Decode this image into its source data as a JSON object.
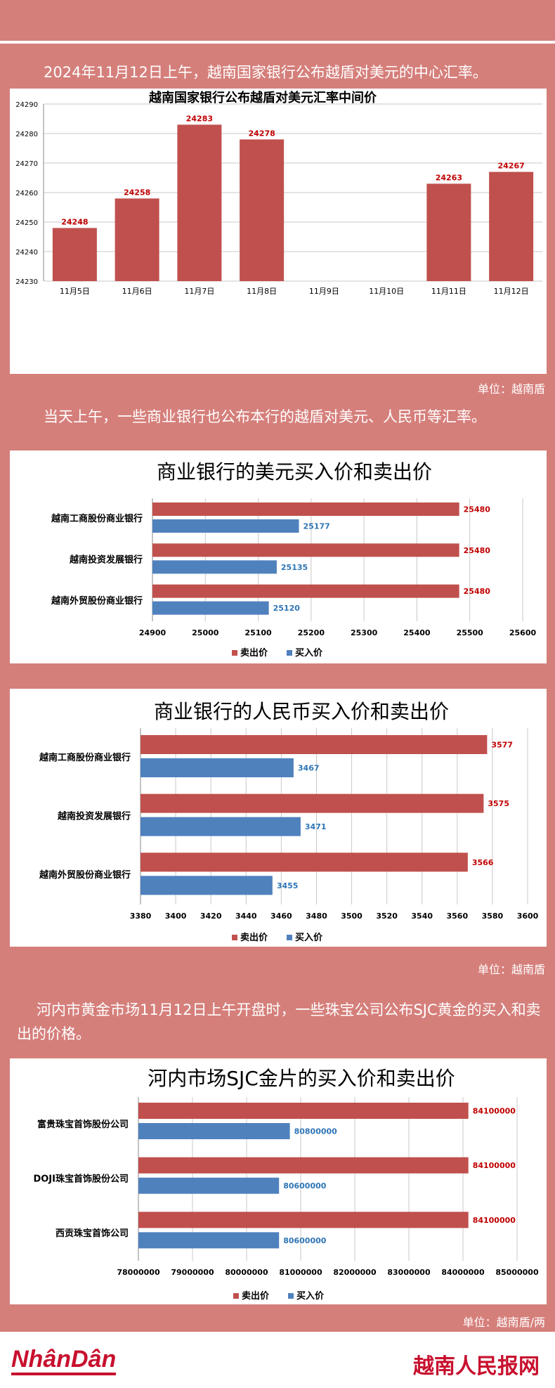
{
  "intro1": "2024年11月12日上午，越南国家银行公布越盾对美元的中心汇率。",
  "unit1": "单位：越南盾",
  "intro2": "当天上午，一些商业银行也公布本行的越盾对美元、人民币等汇率。",
  "unit2": "单位：越南盾",
  "intro3": "河内市黄金市场11月12日上午开盘时，一些珠宝公司公布SJC黄金的买入和卖出的价格。",
  "unit3": "单位：越南盾/两",
  "footer": {
    "logo": "NhânDân",
    "brand": "越南人民报网"
  },
  "colors": {
    "sell": "#c0504d",
    "buy": "#4f81bd",
    "background": "#d57f7b"
  },
  "legend": {
    "sell": "卖出价",
    "buy": "买入价"
  },
  "chart_data": [
    {
      "type": "bar",
      "title": "越南国家银行公布越盾对美元汇率中间价",
      "categories": [
        "11月5日",
        "11月6日",
        "11月7日",
        "11月8日",
        "11月9日",
        "11月10日",
        "11月11日",
        "11月12日"
      ],
      "values": [
        24248,
        24258,
        24283,
        24278,
        null,
        null,
        24263,
        24267
      ],
      "ylim": [
        24230,
        24290
      ],
      "yticks": [
        24230,
        24240,
        24250,
        24260,
        24270,
        24280,
        24290
      ],
      "grid": true
    },
    {
      "type": "bar",
      "orientation": "horizontal",
      "title": "商业银行的美元买入价和卖出价",
      "categories": [
        "越南工商股份商业银行",
        "越南投资发展银行",
        "越南外贸股份商业银行"
      ],
      "series": [
        {
          "name": "卖出价",
          "values": [
            25480,
            25480,
            25480
          ]
        },
        {
          "name": "买入价",
          "values": [
            25177,
            25135,
            25120
          ]
        }
      ],
      "xlim": [
        24900,
        25600
      ],
      "xticks": [
        24900,
        25000,
        25100,
        25200,
        25300,
        25400,
        25500,
        25600
      ],
      "legend": "bottom"
    },
    {
      "type": "bar",
      "orientation": "horizontal",
      "title": "商业银行的人民币买入价和卖出价",
      "categories": [
        "越南工商股份商业银行",
        "越南投资发展银行",
        "越南外贸股份商业银行"
      ],
      "series": [
        {
          "name": "卖出价",
          "values": [
            3577,
            3575,
            3566
          ]
        },
        {
          "name": "买入价",
          "values": [
            3467,
            3471,
            3455
          ]
        }
      ],
      "xlim": [
        3380,
        3600
      ],
      "xticks": [
        3380,
        3400,
        3420,
        3440,
        3460,
        3480,
        3500,
        3520,
        3540,
        3560,
        3580,
        3600
      ],
      "legend": "bottom"
    },
    {
      "type": "bar",
      "orientation": "horizontal",
      "title": "河内市场SJC金片的买入价和卖出价",
      "categories": [
        "富贵珠宝首饰股份公司",
        "DOJI珠宝首饰股份公司",
        "西贡珠宝首饰公司"
      ],
      "series": [
        {
          "name": "卖出价",
          "values": [
            84100000,
            84100000,
            84100000
          ]
        },
        {
          "name": "买入价",
          "values": [
            80800000,
            80600000,
            80600000
          ]
        }
      ],
      "xlim": [
        78000000,
        85000000
      ],
      "xticks": [
        78000000,
        79000000,
        80000000,
        81000000,
        82000000,
        83000000,
        84000000,
        85000000
      ],
      "legend": "bottom"
    }
  ]
}
